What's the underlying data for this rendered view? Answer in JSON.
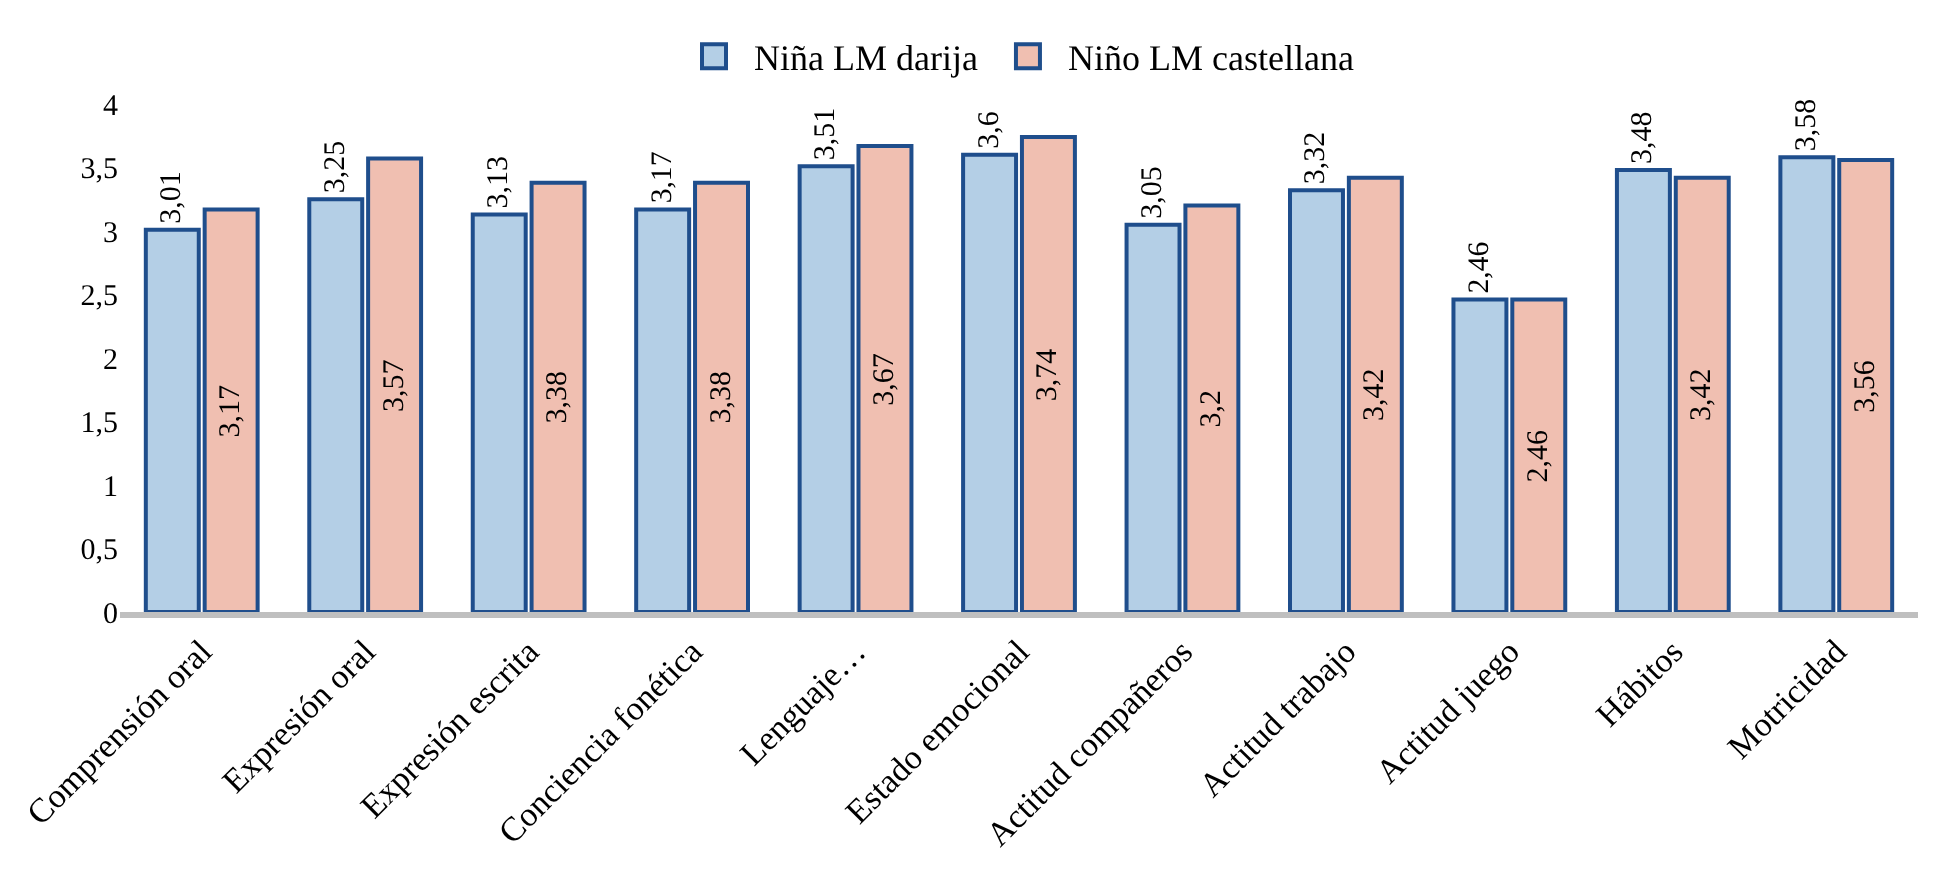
{
  "chart_data": {
    "type": "bar",
    "categories": [
      "Comprensión oral",
      "Expresión oral",
      "Expresión escrita",
      "Conciencia fonética",
      "Lenguaje…",
      "Estado emocional",
      "Actitud compañeros",
      "Actitud trabajo",
      "Actitud juego",
      "Hábitos",
      "Motricidad"
    ],
    "series": [
      {
        "name": "Niña LM darija",
        "color": "#b4cfe6",
        "values": [
          3.01,
          3.25,
          3.13,
          3.17,
          3.51,
          3.6,
          3.05,
          3.32,
          2.46,
          3.48,
          3.58
        ],
        "value_labels": [
          "3,01",
          "3,25",
          "3,13",
          "3,17",
          "3,51",
          "3,6",
          "3,05",
          "3,32",
          "2,46",
          "3,48",
          "3,58"
        ]
      },
      {
        "name": "Niño LM castellana",
        "color": "#f0bfb1",
        "values": [
          3.17,
          3.57,
          3.38,
          3.38,
          3.67,
          3.74,
          3.2,
          3.42,
          2.46,
          3.42,
          3.56
        ],
        "value_labels": [
          "3,17",
          "3,57",
          "3,38",
          "3,38",
          "3,67",
          "3,74",
          "3,2",
          "3,42",
          "2,46",
          "3,42",
          "3,56"
        ]
      }
    ],
    "ylim": [
      0,
      4
    ],
    "yticks": [
      0,
      {
        "value": 0.5,
        "label": "0,5"
      },
      1,
      {
        "value": 1.5,
        "label": "1,5"
      },
      2,
      {
        "value": 2.5,
        "label": "2,5"
      },
      3,
      {
        "value": 3.5,
        "label": "3,5"
      },
      4
    ],
    "legend": "top"
  }
}
